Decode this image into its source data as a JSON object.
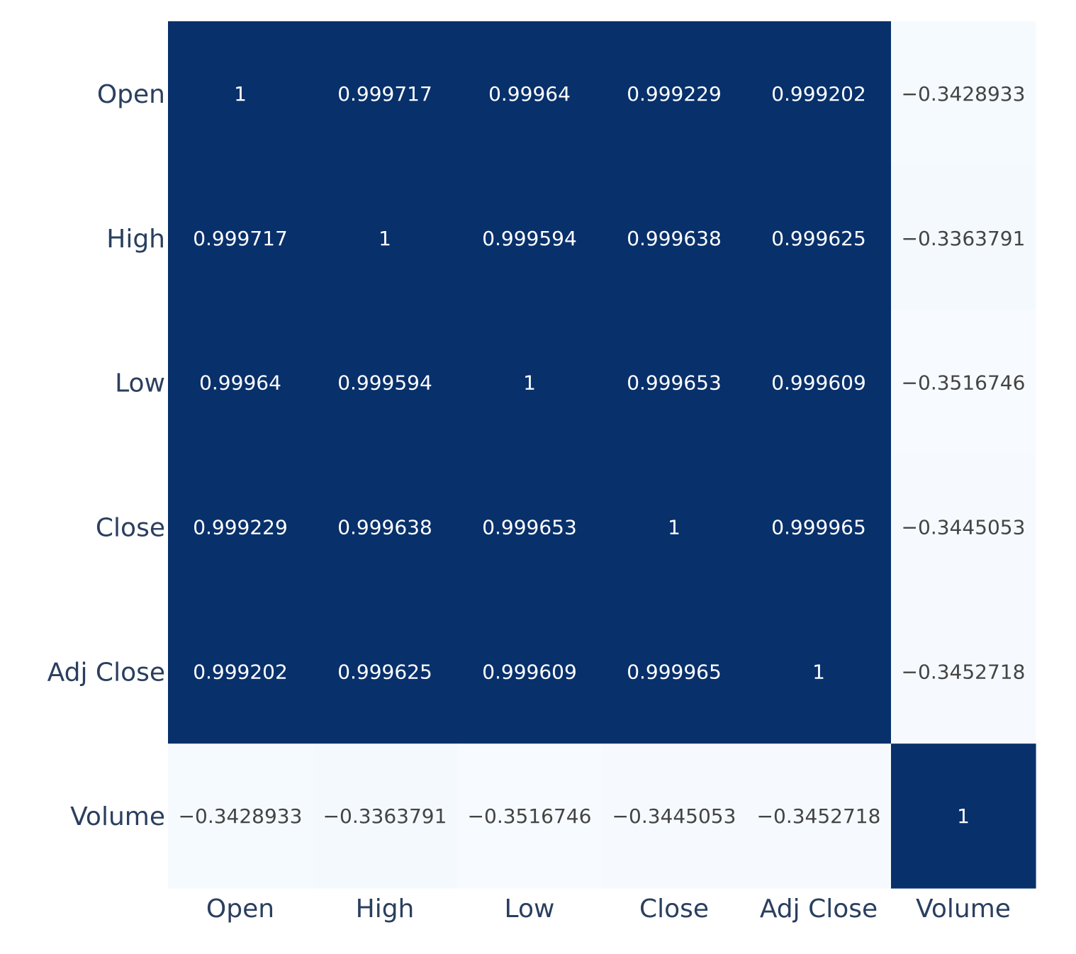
{
  "chart_data": {
    "type": "heatmap",
    "title": "",
    "xlabel": "",
    "ylabel": "",
    "x_categories": [
      "Open",
      "High",
      "Low",
      "Close",
      "Adj Close",
      "Volume"
    ],
    "y_categories": [
      "Open",
      "High",
      "Low",
      "Close",
      "Adj Close",
      "Volume"
    ],
    "values": [
      [
        1,
        0.999717,
        0.99964,
        0.999229,
        0.999202,
        -0.3428933
      ],
      [
        0.999717,
        1,
        0.999594,
        0.999638,
        0.999625,
        -0.3363791
      ],
      [
        0.99964,
        0.999594,
        1,
        0.999653,
        0.999609,
        -0.3516746
      ],
      [
        0.999229,
        0.999638,
        0.999653,
        1,
        0.999965,
        -0.3445053
      ],
      [
        0.999202,
        0.999625,
        0.999609,
        0.999965,
        1,
        -0.3452718
      ],
      [
        -0.3428933,
        -0.3363791,
        -0.3516746,
        -0.3445053,
        -0.3452718,
        1
      ]
    ],
    "text": [
      [
        "1",
        "0.999717",
        "0.99964",
        "0.999229",
        "0.999202",
        "−0.3428933"
      ],
      [
        "0.999717",
        "1",
        "0.999594",
        "0.999638",
        "0.999625",
        "−0.3363791"
      ],
      [
        "0.99964",
        "0.999594",
        "1",
        "0.999653",
        "0.999609",
        "−0.3516746"
      ],
      [
        "0.999229",
        "0.999638",
        "0.999653",
        "1",
        "0.999965",
        "−0.3445053"
      ],
      [
        "0.999202",
        "0.999625",
        "0.999609",
        "0.999965",
        "1",
        "−0.3452718"
      ],
      [
        "−0.3428933",
        "−0.3363791",
        "−0.3516746",
        "−0.3445053",
        "−0.3452718",
        "1"
      ]
    ],
    "colorscale": {
      "low": "#f7fbff",
      "high": "#08306b"
    },
    "zrange": [
      -0.3516746,
      1
    ],
    "text_color_dark_cell": "#ffffff",
    "text_color_light_cell": "#444444",
    "legend": "none",
    "grid": false
  }
}
